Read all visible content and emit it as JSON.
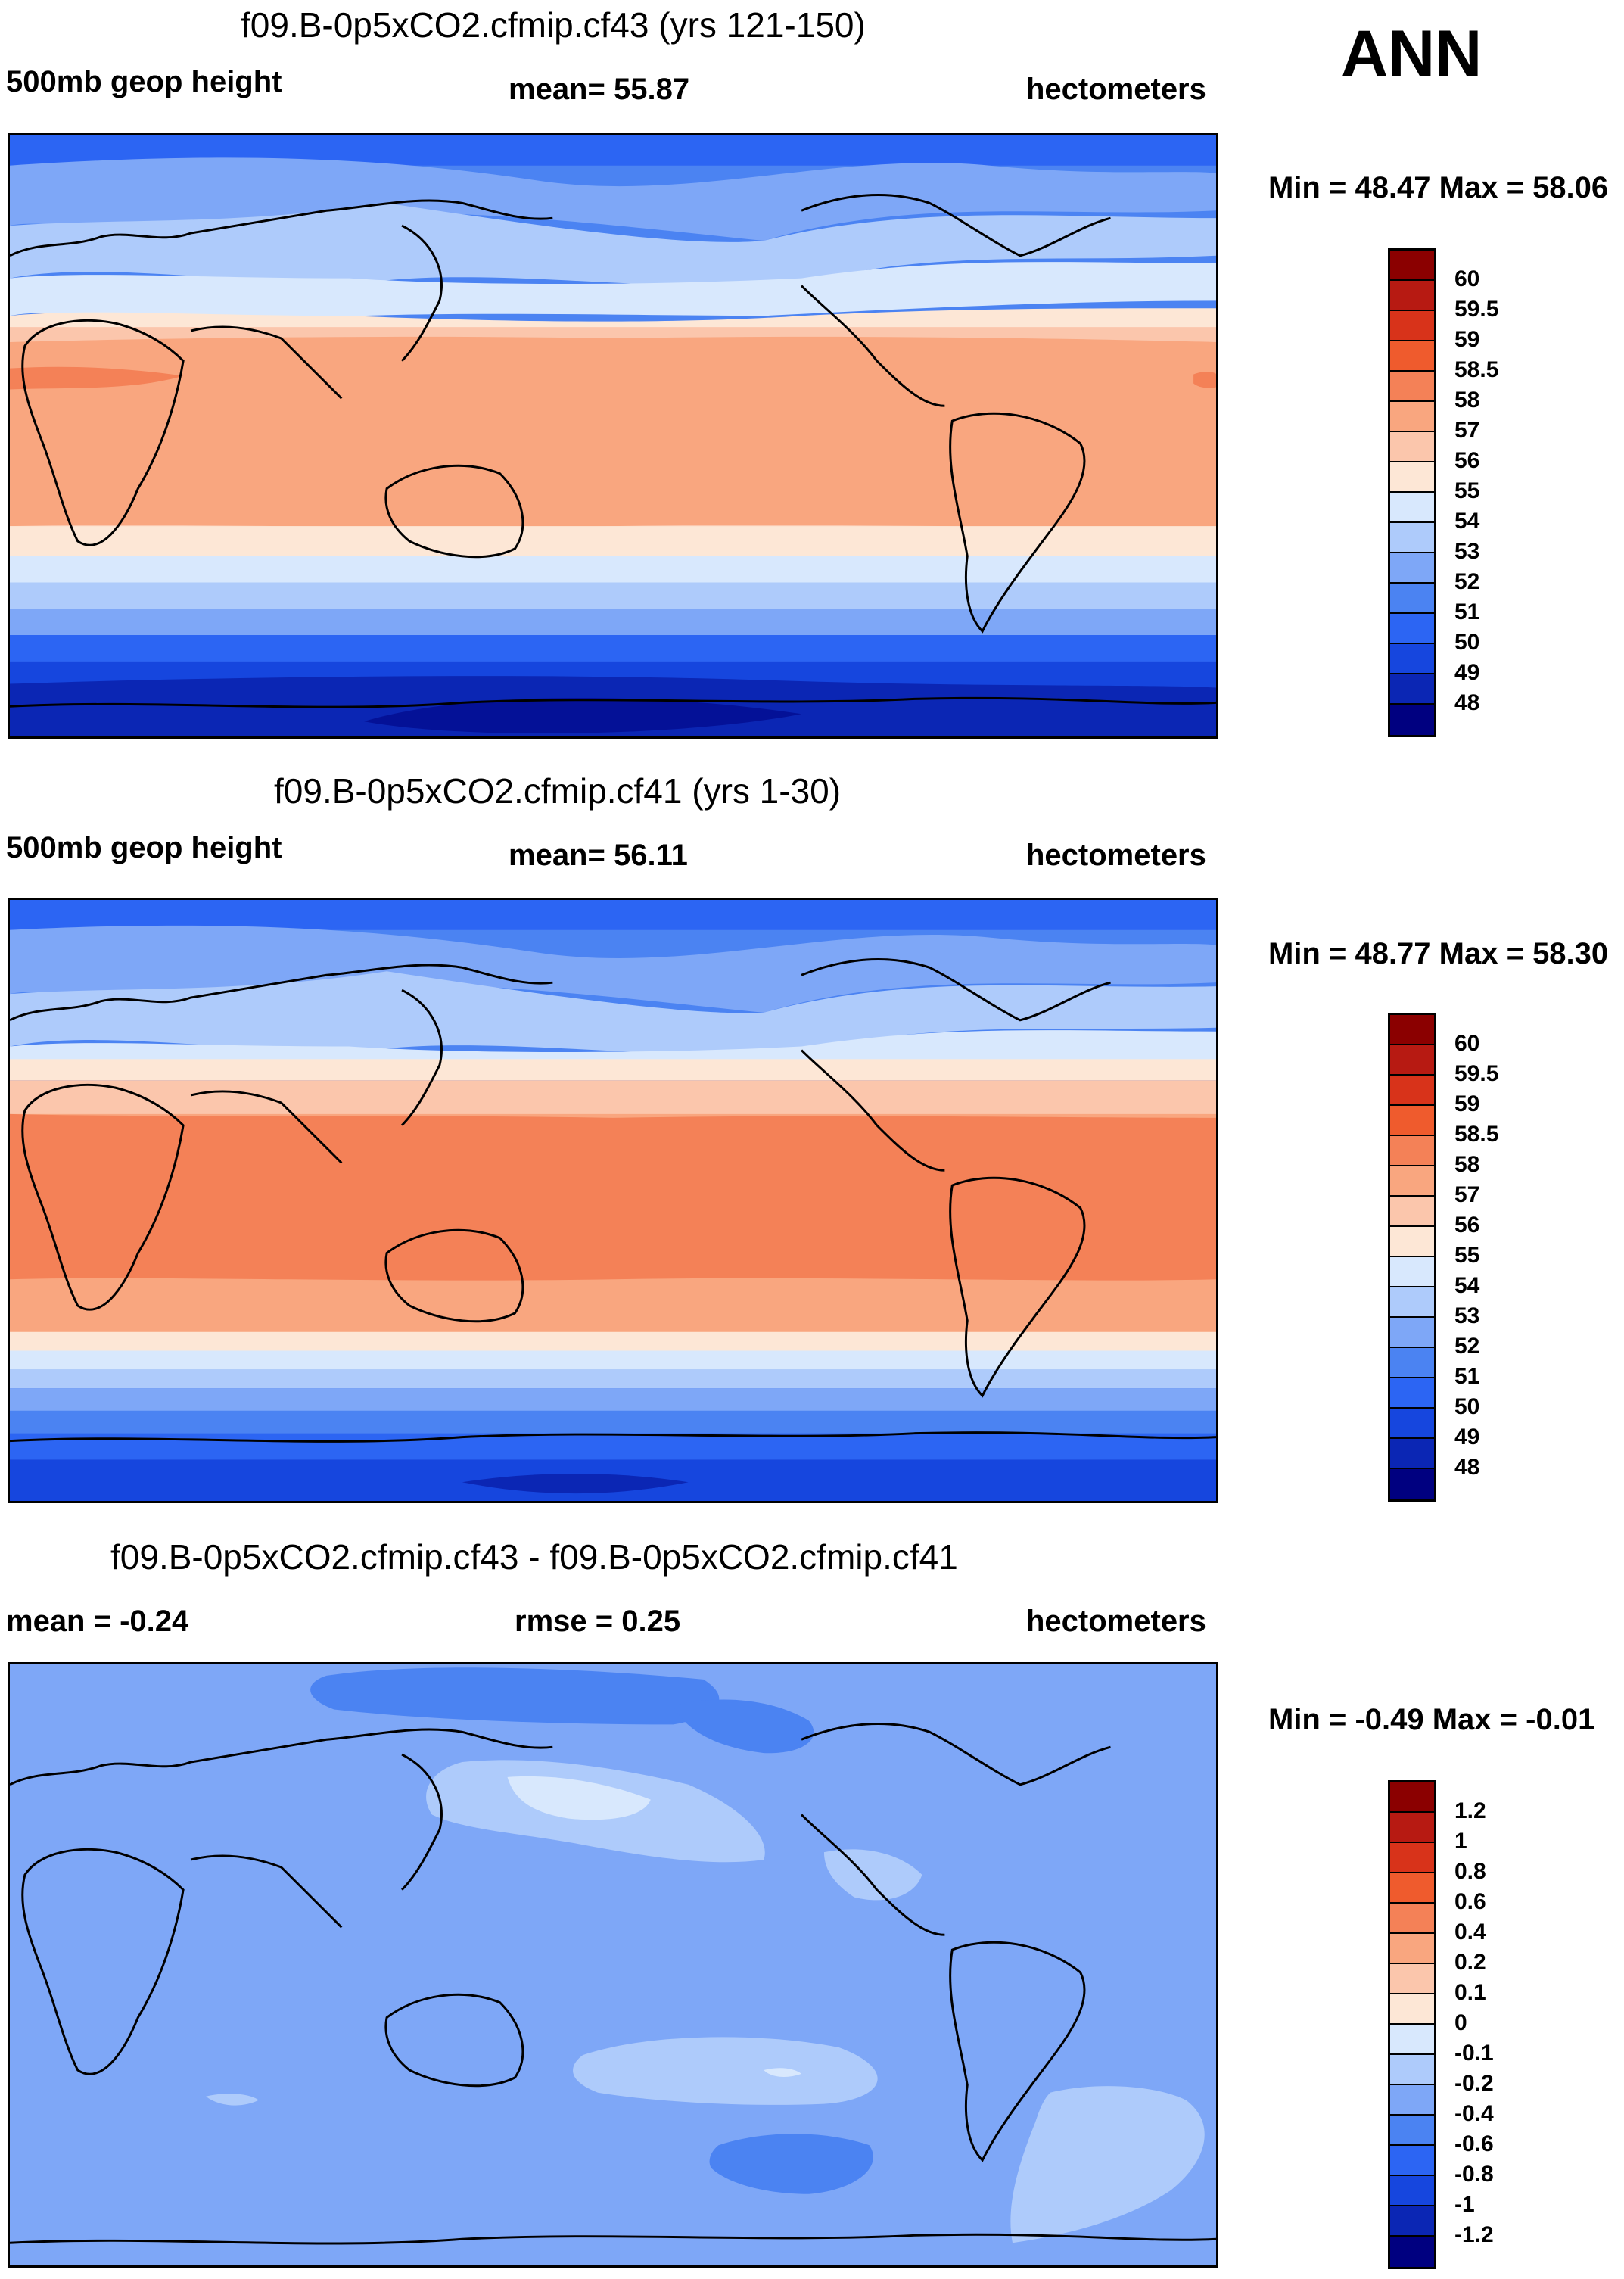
{
  "season": "ANN",
  "colors": {
    "full": [
      "#000080",
      "#0b26b4",
      "#1646de",
      "#2c65f3",
      "#4b83f2",
      "#7ea7f7",
      "#aecbfb",
      "#d8e8fd",
      "#fde7d6",
      "#fbc6ac",
      "#f9a67f",
      "#f48157",
      "#ef5b2d",
      "#d8331a",
      "#b71a12",
      "#8b0000"
    ],
    "diff": [
      "#000080",
      "#0b26b4",
      "#1646de",
      "#2c65f3",
      "#4b83f2",
      "#7ea7f7",
      "#aecbfb",
      "#d8e8fd",
      "#fde7d6",
      "#fbc6ac",
      "#f9a67f",
      "#f48157",
      "#ef5b2d",
      "#d8331a",
      "#b71a12",
      "#8b0000"
    ]
  },
  "panels": [
    {
      "title": "f09.B-0p5xCO2.cfmip.cf43 (yrs 121-150)",
      "left_label": "500mb geop height",
      "center_label": "mean=  55.87",
      "units": "hectometers",
      "minmax": "Min =  48.47 Max =  58.06",
      "ticks": [
        "60",
        "59.5",
        "59",
        "58.5",
        "58",
        "57",
        "56",
        "55",
        "54",
        "53",
        "52",
        "51",
        "50",
        "49",
        "48"
      ]
    },
    {
      "title": "f09.B-0p5xCO2.cfmip.cf41 (yrs 1-30)",
      "left_label": "500mb geop height",
      "center_label": "mean=  56.11",
      "units": "hectometers",
      "minmax": "Min =  48.77 Max =  58.30",
      "ticks": [
        "60",
        "59.5",
        "59",
        "58.5",
        "58",
        "57",
        "56",
        "55",
        "54",
        "53",
        "52",
        "51",
        "50",
        "49",
        "48"
      ]
    },
    {
      "title": "f09.B-0p5xCO2.cfmip.cf43 - f09.B-0p5xCO2.cfmip.cf41",
      "left_label": "mean =  -0.24",
      "center_label": "rmse =   0.25",
      "units": "hectometers",
      "minmax": "Min =  -0.49 Max =  -0.01",
      "ticks": [
        "1.2",
        "1",
        "0.8",
        "0.6",
        "0.4",
        "0.2",
        "0.1",
        "0",
        "-0.1",
        "-0.2",
        "-0.4",
        "-0.6",
        "-0.8",
        "-1",
        "-1.2"
      ]
    }
  ],
  "map_data": {
    "panel1_bands": [
      {
        "value_range": "54-55",
        "color": "#d8e8fd"
      },
      {
        "value_range": "55-56",
        "color": "#fde7d6"
      },
      {
        "value_range": "57-58",
        "color": "#f9a67f"
      },
      {
        "value_range": "58-58.5",
        "color": "#f48157"
      },
      {
        "value_range": "48-49",
        "color": "#0b26b4"
      }
    ],
    "panel2_bands": [
      {
        "value_range": "58-58.5",
        "color": "#f48157"
      },
      {
        "value_range": "57-58",
        "color": "#f9a67f"
      }
    ],
    "panel3_field": {
      "dominant_range": "-0.4 to -0.2",
      "color": "#7ea7f7"
    }
  }
}
